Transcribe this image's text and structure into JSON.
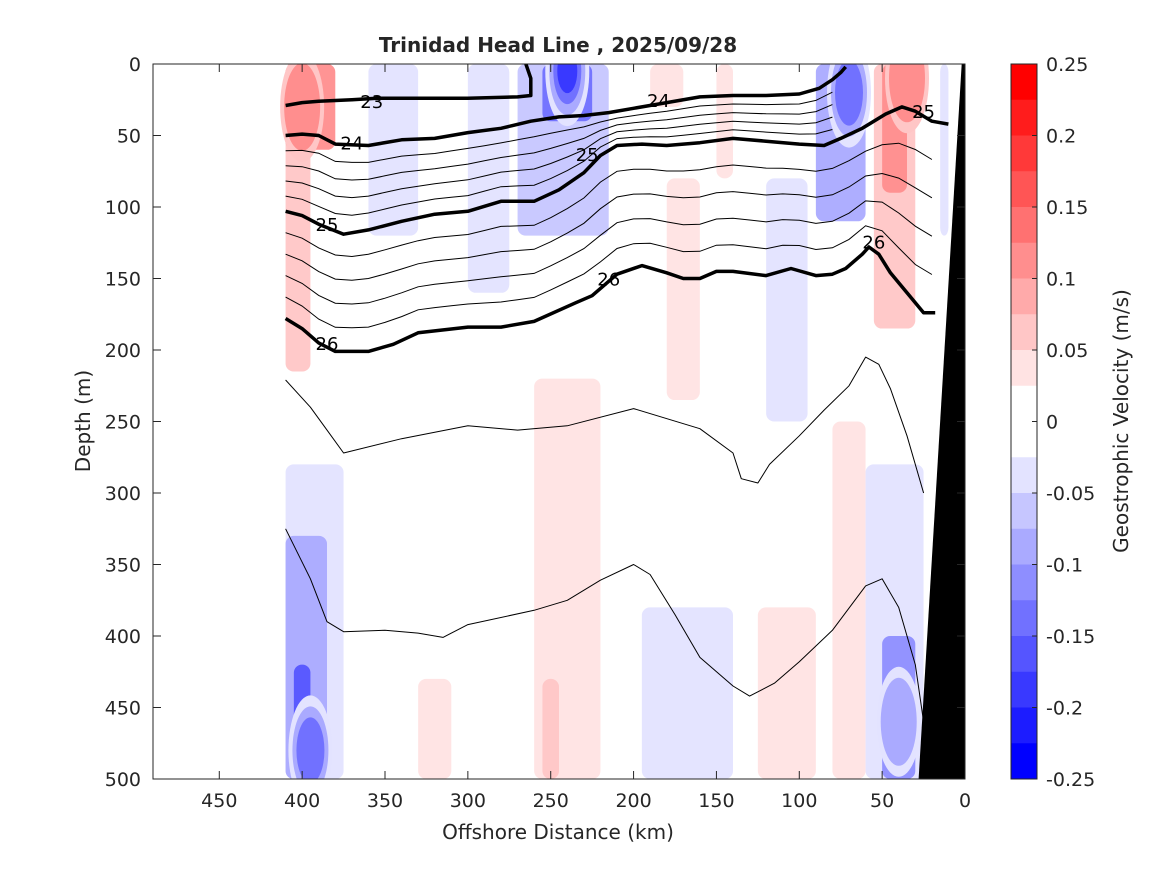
{
  "chart_data": {
    "type": "contour",
    "title": "Trinidad Head Line , 2025/09/28",
    "xlabel": "Offshore Distance (km)",
    "ylabel": "Depth (m)",
    "x_direction": "reversed",
    "xlim": [
      0,
      490
    ],
    "ylim": [
      0,
      500
    ],
    "y_direction": "reversed",
    "xticks": [
      450,
      400,
      350,
      300,
      250,
      200,
      150,
      100,
      50,
      0
    ],
    "xtick_labels": [
      "450",
      "400",
      "350",
      "300",
      "250",
      "200",
      "150",
      "100",
      "50",
      "0"
    ],
    "yticks": [
      0,
      50,
      100,
      150,
      200,
      250,
      300,
      350,
      400,
      450,
      500
    ],
    "ytick_labels": [
      "0",
      "50",
      "100",
      "150",
      "200",
      "250",
      "300",
      "350",
      "400",
      "450",
      "500"
    ],
    "data_offshore_limit_km": 410,
    "colorbar": {
      "label": "Geostrophic Velocity (m/s)",
      "range": [
        -0.25,
        0.25
      ],
      "ticks": [
        0.25,
        0.2,
        0.15,
        0.1,
        0.05,
        0,
        -0.05,
        -0.1,
        -0.15,
        -0.2,
        -0.25
      ],
      "tick_labels": [
        "0.25",
        "0.2",
        "0.15",
        "0.1",
        "0.05",
        "0",
        "-0.05",
        "-0.1",
        "-0.15",
        "-0.2",
        "-0.25"
      ],
      "levels": [
        {
          "min": 0.225,
          "max": 0.25,
          "color": "#ff0000"
        },
        {
          "min": 0.2,
          "max": 0.225,
          "color": "#ff1c1c"
        },
        {
          "min": 0.175,
          "max": 0.2,
          "color": "#ff3939"
        },
        {
          "min": 0.15,
          "max": 0.175,
          "color": "#ff5555"
        },
        {
          "min": 0.125,
          "max": 0.15,
          "color": "#ff7171"
        },
        {
          "min": 0.1,
          "max": 0.125,
          "color": "#ff8e8e"
        },
        {
          "min": 0.075,
          "max": 0.1,
          "color": "#ffaaaa"
        },
        {
          "min": 0.05,
          "max": 0.075,
          "color": "#ffc6c6"
        },
        {
          "min": 0.025,
          "max": 0.05,
          "color": "#ffe3e3"
        },
        {
          "min": 0,
          "max": 0.025,
          "color": "#ffffff"
        },
        {
          "min": -0.025,
          "max": 0,
          "color": "#ffffff"
        },
        {
          "min": -0.05,
          "max": -0.025,
          "color": "#e3e3ff"
        },
        {
          "min": -0.075,
          "max": -0.05,
          "color": "#c6c6ff"
        },
        {
          "min": -0.1,
          "max": -0.075,
          "color": "#aaaaff"
        },
        {
          "min": -0.125,
          "max": -0.1,
          "color": "#8e8eff"
        },
        {
          "min": -0.15,
          "max": -0.125,
          "color": "#7171ff"
        },
        {
          "min": -0.175,
          "max": -0.15,
          "color": "#5555ff"
        },
        {
          "min": -0.2,
          "max": -0.175,
          "color": "#3939ff"
        },
        {
          "min": -0.225,
          "max": -0.2,
          "color": "#1c1cff"
        },
        {
          "min": -0.25,
          "max": -0.225,
          "color": "#0000ff"
        }
      ]
    },
    "velocity_cores": [
      {
        "name": "nearshore-northward-jet",
        "x_km": 35,
        "depth_m": 10,
        "peak_velocity": 0.11,
        "sign": "positive"
      },
      {
        "name": "offshore-northward-jet",
        "x_km": 400,
        "depth_m": 30,
        "peak_velocity": 0.11,
        "sign": "positive"
      },
      {
        "name": "core-southward-jet",
        "x_km": 240,
        "depth_m": 5,
        "peak_velocity": -0.2,
        "sign": "negative"
      },
      {
        "name": "shelf-break-southward-jet",
        "x_km": 70,
        "depth_m": 20,
        "peak_velocity": -0.18,
        "sign": "negative"
      },
      {
        "name": "deep-offshore-southward",
        "x_km": 395,
        "depth_m": 480,
        "peak_velocity": -0.16,
        "sign": "negative"
      },
      {
        "name": "deep-nearshore-southward",
        "x_km": 40,
        "depth_m": 460,
        "peak_velocity": -0.13,
        "sign": "negative"
      }
    ],
    "density_contours": [
      {
        "level": "23",
        "labeled": true,
        "points": [
          [
            410,
            29
          ],
          [
            400,
            27
          ],
          [
            390,
            26
          ],
          [
            370,
            25
          ],
          [
            355,
            24
          ],
          [
            330,
            24
          ],
          [
            300,
            24
          ],
          [
            270,
            23
          ],
          [
            262,
            22
          ],
          [
            262,
            10
          ],
          [
            265,
            0
          ]
        ]
      },
      {
        "level": "24",
        "labeled": true,
        "points": [
          [
            410,
            50
          ],
          [
            400,
            49
          ],
          [
            390,
            50
          ],
          [
            380,
            56
          ],
          [
            360,
            57
          ],
          [
            340,
            53
          ],
          [
            320,
            52
          ],
          [
            300,
            48
          ],
          [
            280,
            45
          ],
          [
            262,
            40
          ],
          [
            245,
            37
          ],
          [
            230,
            36
          ],
          [
            215,
            34
          ],
          [
            200,
            31
          ],
          [
            180,
            27
          ],
          [
            160,
            23
          ],
          [
            140,
            22
          ],
          [
            120,
            22
          ],
          [
            100,
            21
          ],
          [
            88,
            17
          ],
          [
            80,
            11
          ],
          [
            75,
            6
          ],
          [
            72,
            2
          ]
        ]
      },
      {
        "level": "25",
        "labeled": true,
        "points": [
          [
            410,
            103
          ],
          [
            400,
            106
          ],
          [
            390,
            112
          ],
          [
            375,
            119
          ],
          [
            360,
            116
          ],
          [
            340,
            110
          ],
          [
            320,
            105
          ],
          [
            300,
            103
          ],
          [
            280,
            96
          ],
          [
            260,
            96
          ],
          [
            245,
            88
          ],
          [
            230,
            76
          ],
          [
            220,
            64
          ],
          [
            210,
            57
          ],
          [
            195,
            56
          ],
          [
            180,
            57
          ],
          [
            160,
            55
          ],
          [
            140,
            52
          ],
          [
            120,
            54
          ],
          [
            100,
            56
          ],
          [
            85,
            57
          ],
          [
            75,
            52
          ],
          [
            62,
            45
          ],
          [
            48,
            35
          ],
          [
            38,
            30
          ],
          [
            30,
            33
          ],
          [
            20,
            40
          ],
          [
            10,
            42
          ]
        ]
      },
      {
        "level": "26",
        "labeled": true,
        "points": [
          [
            410,
            178
          ],
          [
            400,
            185
          ],
          [
            390,
            195
          ],
          [
            380,
            201
          ],
          [
            360,
            201
          ],
          [
            345,
            196
          ],
          [
            330,
            188
          ],
          [
            300,
            184
          ],
          [
            280,
            184
          ],
          [
            260,
            180
          ],
          [
            235,
            167
          ],
          [
            225,
            162
          ],
          [
            210,
            147
          ],
          [
            195,
            141
          ],
          [
            180,
            146
          ],
          [
            170,
            150
          ],
          [
            160,
            150
          ],
          [
            150,
            145
          ],
          [
            140,
            145
          ],
          [
            120,
            148
          ],
          [
            105,
            143
          ],
          [
            90,
            148
          ],
          [
            80,
            147
          ],
          [
            72,
            143
          ],
          [
            62,
            133
          ],
          [
            58,
            128
          ],
          [
            52,
            133
          ],
          [
            45,
            146
          ],
          [
            35,
            160
          ],
          [
            25,
            174
          ],
          [
            18,
            174
          ]
        ]
      },
      {
        "level": "",
        "labeled": false,
        "points": [
          [
            410,
            221
          ],
          [
            395,
            240
          ],
          [
            385,
            256
          ],
          [
            375,
            272
          ],
          [
            340,
            262
          ],
          [
            300,
            253
          ],
          [
            270,
            256
          ],
          [
            240,
            253
          ],
          [
            200,
            241
          ],
          [
            160,
            255
          ],
          [
            140,
            272
          ],
          [
            135,
            290
          ],
          [
            125,
            293
          ],
          [
            118,
            280
          ],
          [
            100,
            260
          ],
          [
            85,
            242
          ],
          [
            70,
            225
          ],
          [
            60,
            205
          ],
          [
            52,
            210
          ],
          [
            45,
            227
          ],
          [
            35,
            260
          ],
          [
            25,
            300
          ]
        ]
      },
      {
        "level": "",
        "labeled": false,
        "points": [
          [
            410,
            325
          ],
          [
            395,
            360
          ],
          [
            385,
            390
          ],
          [
            375,
            397
          ],
          [
            350,
            396
          ],
          [
            330,
            398
          ],
          [
            315,
            401
          ],
          [
            300,
            392
          ],
          [
            260,
            382
          ],
          [
            240,
            375
          ],
          [
            220,
            361
          ],
          [
            200,
            350
          ],
          [
            190,
            357
          ],
          [
            175,
            385
          ],
          [
            160,
            415
          ],
          [
            140,
            435
          ],
          [
            130,
            442
          ],
          [
            115,
            433
          ],
          [
            100,
            418
          ],
          [
            80,
            396
          ],
          [
            60,
            365
          ],
          [
            50,
            360
          ],
          [
            40,
            380
          ],
          [
            30,
            420
          ],
          [
            25,
            460
          ]
        ]
      }
    ],
    "thin_contours_upper": 14,
    "bathymetry": {
      "color": "#000000",
      "points": [
        [
          0,
          0
        ],
        [
          0,
          500
        ],
        [
          28,
          500
        ],
        [
          2,
          0
        ]
      ]
    }
  }
}
